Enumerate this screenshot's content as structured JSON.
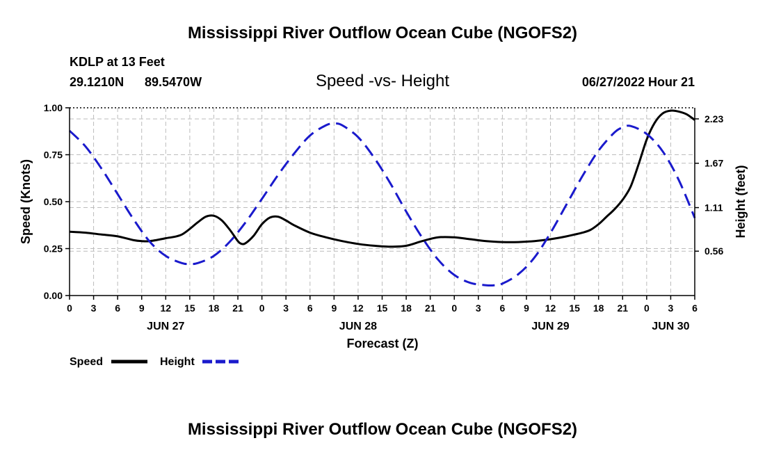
{
  "title": "Mississippi River Outflow Ocean Cube (NGOFS2)",
  "footer_title": "Mississippi River Outflow Ocean Cube (NGOFS2)",
  "station": {
    "name": "KDLP at 13 Feet",
    "lat": "29.1210N",
    "lon": "89.5470W"
  },
  "subtitle": "Speed -vs- Height",
  "timestamp": "06/27/2022 Hour 21",
  "legend": {
    "speed_label": "Speed",
    "height_label": "Height"
  },
  "colors": {
    "speed": "#000000",
    "height": "#1a1acc",
    "grid": "#bbbbbb"
  },
  "chart_data": {
    "type": "line",
    "title": "Speed -vs- Height",
    "xlabel": "Forecast (Z)",
    "ylabel": "Speed (Knots)",
    "y2label": "Height (feet)",
    "xlim": [
      0,
      78
    ],
    "ylim": [
      0,
      1
    ],
    "y2lim": [
      0,
      2.37
    ],
    "y_ticks": [
      "0.00",
      "0.25",
      "0.50",
      "0.75",
      "1.00"
    ],
    "y2_ticks": [
      "0.56",
      "1.11",
      "1.67",
      "2.23"
    ],
    "x_tick_labels": [
      "0",
      "3",
      "6",
      "9",
      "12",
      "15",
      "18",
      "21",
      "0",
      "3",
      "6",
      "9",
      "12",
      "15",
      "18",
      "21",
      "0",
      "3",
      "6",
      "9",
      "12",
      "15",
      "18",
      "21",
      "0",
      "3",
      "6"
    ],
    "date_labels": [
      {
        "label": "JUN 27",
        "x": 12
      },
      {
        "label": "JUN 28",
        "x": 36
      },
      {
        "label": "JUN 29",
        "x": 60
      },
      {
        "label": "JUN 30",
        "x": 75
      }
    ],
    "grid": true,
    "series": [
      {
        "name": "Speed",
        "axis": "left",
        "style": "solid",
        "x": [
          0,
          2,
          4,
          6,
          8,
          9,
          10,
          12,
          14,
          16,
          17,
          18,
          19,
          20,
          21,
          21.5,
          22,
          23,
          24,
          25,
          26,
          27,
          28,
          30,
          32,
          34,
          36,
          38,
          40,
          42,
          44,
          46,
          48,
          50,
          52,
          54,
          56,
          58,
          60,
          62,
          63,
          64,
          65,
          66,
          67,
          68,
          69,
          70,
          71,
          72,
          73,
          74,
          75,
          76,
          77,
          78
        ],
        "values": [
          0.34,
          0.335,
          0.325,
          0.315,
          0.295,
          0.29,
          0.29,
          0.305,
          0.325,
          0.39,
          0.42,
          0.425,
          0.4,
          0.35,
          0.29,
          0.275,
          0.28,
          0.32,
          0.38,
          0.415,
          0.42,
          0.4,
          0.375,
          0.335,
          0.31,
          0.29,
          0.275,
          0.265,
          0.26,
          0.265,
          0.29,
          0.31,
          0.31,
          0.3,
          0.29,
          0.285,
          0.285,
          0.29,
          0.3,
          0.315,
          0.325,
          0.335,
          0.35,
          0.38,
          0.42,
          0.46,
          0.51,
          0.58,
          0.7,
          0.83,
          0.92,
          0.97,
          0.985,
          0.98,
          0.965,
          0.935
        ]
      },
      {
        "name": "Height",
        "axis": "right",
        "style": "dashed",
        "x": [
          0,
          2,
          4,
          6,
          8,
          10,
          12,
          14,
          15,
          16,
          18,
          20,
          22,
          24,
          26,
          28,
          30,
          32,
          33,
          34,
          36,
          38,
          40,
          42,
          44,
          46,
          48,
          50,
          52,
          53,
          54,
          56,
          58,
          60,
          62,
          64,
          66,
          68,
          69,
          70,
          72,
          74,
          76,
          78
        ],
        "values": [
          2.08,
          1.88,
          1.6,
          1.28,
          0.96,
          0.68,
          0.5,
          0.41,
          0.4,
          0.41,
          0.5,
          0.68,
          0.93,
          1.22,
          1.52,
          1.79,
          2.02,
          2.15,
          2.17,
          2.15,
          2.0,
          1.74,
          1.42,
          1.06,
          0.73,
          0.45,
          0.26,
          0.16,
          0.13,
          0.13,
          0.15,
          0.27,
          0.48,
          0.79,
          1.15,
          1.51,
          1.83,
          2.06,
          2.12,
          2.14,
          2.04,
          1.82,
          1.46,
          0.98
        ]
      }
    ]
  }
}
